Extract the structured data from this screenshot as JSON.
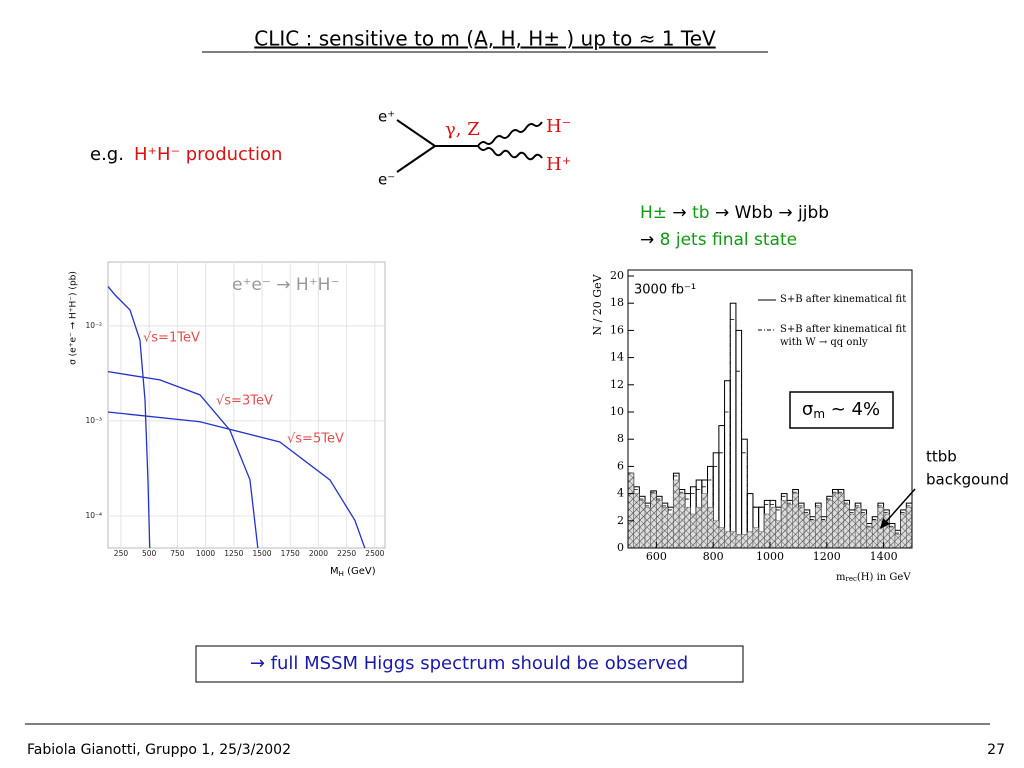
{
  "title": "CLIC :  sensitive to  m (A, H, H± ) up to ≈ 1  TeV",
  "example": {
    "prefix": "e.g.",
    "process": "H⁺H⁻ production"
  },
  "diagram": {
    "e_plus": "e⁺",
    "e_minus": "e⁻",
    "boson": "γ, Z",
    "h_minus": "H⁻",
    "h_plus": "H⁺"
  },
  "decay": {
    "line1": [
      "H±",
      " → ",
      "tb",
      " → Wbb → jjbb"
    ],
    "line2": [
      "→ ",
      "8 jets final state"
    ]
  },
  "conclusion": "→ full MSSM Higgs spectrum should be observed",
  "footer": {
    "author": "Fabiola Gianotti,  Gruppo 1, 25/3/2002",
    "page": "27"
  },
  "chart_data": [
    {
      "type": "line",
      "log_y": true,
      "grid": true,
      "annotation": "e⁺e⁻  →  H⁺H⁻",
      "x_label": [
        "M",
        "H",
        " (GeV)"
      ],
      "y_label": "σ (e⁺e⁻ → H⁺H⁻) (pb)",
      "xlim": [
        135,
        2590
      ],
      "ylim": [
        4.6e-05,
        0.047
      ],
      "xticks": [
        250,
        500,
        750,
        1000,
        1250,
        1500,
        1750,
        2000,
        2250,
        2500
      ],
      "yticks": [
        {
          "value": 0.01,
          "label": "10⁻²"
        },
        {
          "value": 0.001,
          "label": "10⁻³"
        },
        {
          "value": 0.0001,
          "label": "10⁻⁴"
        }
      ],
      "series": [
        {
          "name": "√s=1TeV",
          "color": "#2233cc",
          "x": [
            135,
            200,
            330,
            418,
            463,
            489,
            505
          ],
          "values": [
            0.026,
            0.021,
            0.0147,
            0.0071,
            0.00166,
            0.00024,
            4.6e-05
          ]
        },
        {
          "name": "√s=3TeV",
          "color": "#2233cc",
          "x": [
            135,
            595,
            950,
            1215,
            1393,
            1463
          ],
          "values": [
            0.0033,
            0.0027,
            0.00188,
            0.0008,
            0.00024,
            4.6e-05
          ]
        },
        {
          "name": "√s=5TeV",
          "color": "#2233cc",
          "x": [
            135,
            950,
            1658,
            2101,
            2323,
            2411
          ],
          "values": [
            0.00124,
            0.00098,
            0.0006,
            0.00024,
            9e-05,
            4.6e-05
          ]
        }
      ]
    },
    {
      "type": "histogram",
      "x_label": [
        "m",
        "rec",
        "(H) in GeV"
      ],
      "y_label": "N / 20 GeV",
      "luminosity": "3000 fb⁻¹",
      "resolution": [
        "σ",
        "m",
        " ~ 4%"
      ],
      "background_label": [
        "ttbb",
        "backgound"
      ],
      "xlim": [
        500,
        1500
      ],
      "ylim": [
        0,
        20
      ],
      "xticks": [
        600,
        800,
        1000,
        1200,
        1400
      ],
      "yticks": [
        0,
        2,
        4,
        6,
        8,
        10,
        12,
        14,
        16,
        18,
        20
      ],
      "bins": [
        500,
        520,
        540,
        560,
        580,
        600,
        620,
        640,
        660,
        680,
        700,
        720,
        740,
        760,
        780,
        800,
        820,
        840,
        860,
        880,
        900,
        920,
        940,
        960,
        980,
        1000,
        1020,
        1040,
        1060,
        1080,
        1100,
        1120,
        1140,
        1160,
        1180,
        1200,
        1220,
        1240,
        1260,
        1280,
        1300,
        1320,
        1340,
        1360,
        1380,
        1400,
        1420,
        1440,
        1460,
        1480,
        1500
      ],
      "series": [
        {
          "name": "S+B after kinematical fit",
          "color": "#000000",
          "style": "solid",
          "values": [
            5.5,
            4.5,
            3.8,
            3.3,
            4.2,
            3.8,
            3.3,
            3,
            5.5,
            4.3,
            4,
            4.5,
            5,
            5,
            6,
            7,
            9,
            12.3,
            18,
            16,
            8,
            4,
            3,
            3,
            3.5,
            3.5,
            3,
            4,
            3.5,
            4.3,
            3.3,
            2.8,
            2.3,
            3.3,
            2.3,
            3.8,
            4.3,
            4.3,
            3.5,
            2.8,
            3.3,
            2.8,
            1.8,
            2.3,
            3.3,
            2.8,
            1.8,
            1.3,
            2.8,
            3.3
          ]
        },
        {
          "name": "S+B after kinematical fit with W → qq only",
          "color": "#000000",
          "style": "dashdot",
          "values": [
            5.5,
            4.3,
            3.6,
            3.1,
            4.1,
            3.6,
            3.1,
            2.8,
            5.3,
            4.1,
            3.6,
            4,
            4.3,
            4.5,
            5,
            6,
            7,
            10,
            16.8,
            13,
            7,
            4,
            3,
            3,
            3.2,
            3.2,
            2.8,
            3.8,
            3.3,
            4.1,
            3.1,
            2.6,
            2.1,
            3.1,
            2.1,
            3.6,
            4.1,
            4.1,
            3.3,
            2.6,
            3.1,
            2.6,
            1.6,
            2.1,
            3.1,
            2.6,
            1.6,
            1.1,
            2.6,
            3.1
          ]
        },
        {
          "name": "ttbb",
          "color": "#555555",
          "style": "hatched",
          "values": [
            5.5,
            4,
            3.5,
            3,
            4,
            3.5,
            3,
            2.5,
            5,
            4,
            3,
            2.5,
            3,
            4,
            3,
            2,
            1.5,
            1.2,
            1.2,
            1,
            1,
            1.2,
            1.5,
            1.2,
            2.5,
            3,
            2,
            3.5,
            3.2,
            4,
            3,
            2.5,
            2,
            3,
            2,
            3.5,
            4,
            4,
            3.2,
            2.5,
            3,
            2.5,
            1.5,
            2,
            3,
            2.5,
            1.5,
            1,
            2.5,
            3
          ]
        }
      ]
    }
  ]
}
